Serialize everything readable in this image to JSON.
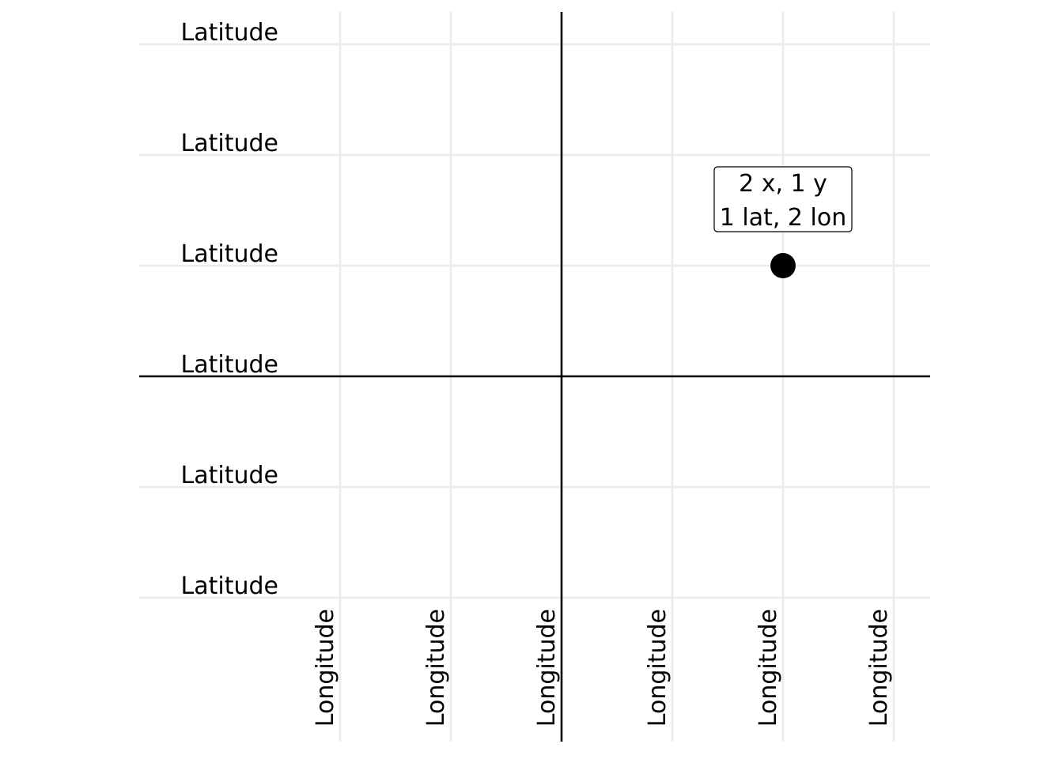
{
  "chart_data": {
    "type": "scatter",
    "title": "",
    "xlabel": "",
    "ylabel": "",
    "xlim": [
      -2,
      3
    ],
    "ylim": [
      -2,
      3
    ],
    "x_ticks": [
      -2,
      -1,
      0,
      1,
      2,
      3
    ],
    "y_ticks": [
      -2,
      -1,
      0,
      1,
      2,
      3
    ],
    "x_tick_label": "Longitude",
    "y_tick_label": "Latitude",
    "grid": true,
    "points": [
      {
        "x": 2,
        "y": 1,
        "label": [
          "2 x, 1 y",
          "1 lat, 2 lon"
        ]
      }
    ],
    "colors": {
      "grid": "#ebebeb",
      "axis": "#000000",
      "point": "#000000",
      "background": "#ffffff"
    }
  }
}
